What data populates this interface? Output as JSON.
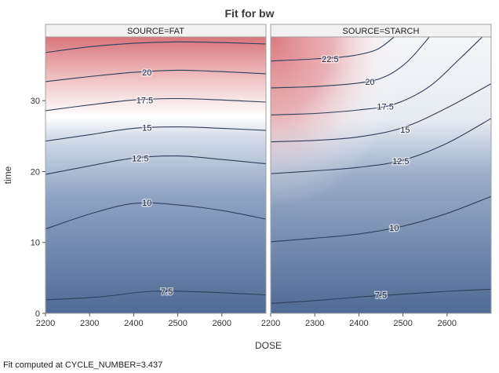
{
  "chart_data": {
    "type": "contour",
    "title": "Fit for bw",
    "xlabel": "DOSE",
    "ylabel": "time",
    "xlim": [
      2200,
      2700
    ],
    "ylim": [
      0,
      39
    ],
    "x_ticks": [
      2200,
      2300,
      2400,
      2500,
      2600
    ],
    "y_ticks": [
      0,
      10,
      20,
      30
    ],
    "grid": false,
    "legend": "none",
    "colors": {
      "low": "#4f6a94",
      "mid": "#ffffff",
      "high": "#d9757a",
      "contour_line": "#2e3f5c",
      "strip_bg": "#f2f2f2",
      "frame": "#a0a0a0"
    },
    "panels": [
      {
        "strip_label": "SOURCE=FAT",
        "contours": [
          {
            "level": "7.5",
            "points": [
              [
                2200,
                1.9
              ],
              [
                2320,
                2.3
              ],
              [
                2440,
                3.1
              ],
              [
                2560,
                3.0
              ],
              [
                2700,
                2.6
              ]
            ],
            "label_at": [
              2475,
              3.1
            ]
          },
          {
            "level": "10",
            "points": [
              [
                2200,
                11.9
              ],
              [
                2300,
                14.0
              ],
              [
                2400,
                15.5
              ],
              [
                2500,
                15.3
              ],
              [
                2600,
                14.5
              ],
              [
                2700,
                13.3
              ]
            ],
            "label_at": [
              2430,
              15.6
            ]
          },
          {
            "level": "12.5",
            "points": [
              [
                2200,
                19.6
              ],
              [
                2300,
                20.8
              ],
              [
                2400,
                21.9
              ],
              [
                2500,
                22.2
              ],
              [
                2600,
                21.7
              ],
              [
                2700,
                21.1
              ]
            ],
            "label_at": [
              2415,
              21.9
            ]
          },
          {
            "level": "15",
            "points": [
              [
                2200,
                24.3
              ],
              [
                2300,
                25.2
              ],
              [
                2400,
                26.1
              ],
              [
                2500,
                26.3
              ],
              [
                2600,
                26.1
              ],
              [
                2700,
                25.8
              ]
            ],
            "label_at": [
              2430,
              26.2
            ]
          },
          {
            "level": "17.5",
            "points": [
              [
                2200,
                28.6
              ],
              [
                2300,
                29.4
              ],
              [
                2400,
                30.1
              ],
              [
                2500,
                30.3
              ],
              [
                2600,
                30.1
              ],
              [
                2700,
                29.8
              ]
            ],
            "label_at": [
              2425,
              30.1
            ]
          },
          {
            "level": "20",
            "points": [
              [
                2200,
                32.7
              ],
              [
                2300,
                33.4
              ],
              [
                2400,
                34.0
              ],
              [
                2500,
                34.3
              ],
              [
                2600,
                34.1
              ],
              [
                2700,
                33.8
              ]
            ],
            "label_at": [
              2430,
              34.0
            ]
          },
          {
            "level": "",
            "points": [
              [
                2200,
                36.8
              ],
              [
                2300,
                37.6
              ],
              [
                2400,
                38.1
              ],
              [
                2500,
                38.3
              ],
              [
                2600,
                38.2
              ],
              [
                2700,
                38.0
              ]
            ]
          }
        ]
      },
      {
        "strip_label": "SOURCE=STARCH",
        "contours": [
          {
            "level": "7.5",
            "points": [
              [
                2200,
                1.4
              ],
              [
                2300,
                1.8
              ],
              [
                2400,
                2.3
              ],
              [
                2500,
                2.7
              ],
              [
                2600,
                3.1
              ],
              [
                2700,
                3.4
              ]
            ],
            "label_at": [
              2450,
              2.6
            ]
          },
          {
            "level": "10",
            "points": [
              [
                2200,
                10.1
              ],
              [
                2300,
                10.6
              ],
              [
                2400,
                11.2
              ],
              [
                2500,
                12.3
              ],
              [
                2600,
                14.1
              ],
              [
                2700,
                16.5
              ]
            ],
            "label_at": [
              2480,
              12.1
            ]
          },
          {
            "level": "12.5",
            "points": [
              [
                2200,
                19.7
              ],
              [
                2300,
                20.1
              ],
              [
                2400,
                20.6
              ],
              [
                2500,
                21.6
              ],
              [
                2600,
                24.0
              ],
              [
                2700,
                27.5
              ]
            ],
            "label_at": [
              2495,
              21.5
            ]
          },
          {
            "level": "15",
            "points": [
              [
                2200,
                24.2
              ],
              [
                2300,
                24.4
              ],
              [
                2400,
                24.9
              ],
              [
                2500,
                26.2
              ],
              [
                2600,
                29.0
              ],
              [
                2700,
                32.4
              ]
            ],
            "label_at": [
              2505,
              25.9
            ]
          },
          {
            "level": "17.5",
            "points": [
              [
                2200,
                28.0
              ],
              [
                2300,
                28.2
              ],
              [
                2400,
                28.7
              ],
              [
                2480,
                29.5
              ],
              [
                2560,
                32.0
              ],
              [
                2630,
                36.0
              ],
              [
                2680,
                39.0
              ]
            ],
            "label_at": [
              2460,
              29.2
            ]
          },
          {
            "level": "20",
            "points": [
              [
                2200,
                31.8
              ],
              [
                2300,
                32.0
              ],
              [
                2400,
                32.5
              ],
              [
                2460,
                33.4
              ],
              [
                2510,
                35.5
              ],
              [
                2560,
                39.0
              ]
            ],
            "label_at": [
              2425,
              32.7
            ]
          },
          {
            "level": "22.5",
            "points": [
              [
                2200,
                35.6
              ],
              [
                2300,
                35.9
              ],
              [
                2380,
                36.3
              ],
              [
                2440,
                37.2
              ],
              [
                2480,
                39.0
              ]
            ],
            "label_at": [
              2335,
              35.9
            ]
          }
        ]
      }
    ],
    "footnote": "Fit computed at CYCLE_NUMBER=3.437"
  }
}
